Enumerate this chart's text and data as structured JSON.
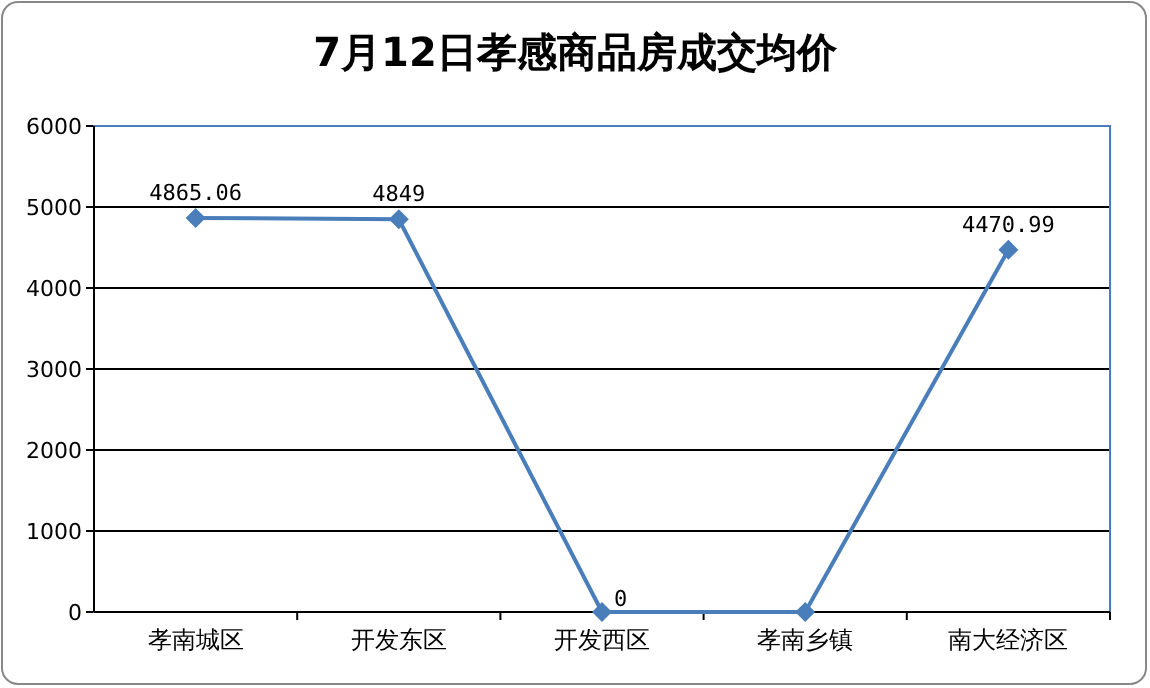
{
  "chart_data": {
    "type": "line",
    "title": "7月12日孝感商品房成交均价",
    "categories": [
      "孝南城区",
      "开发东区",
      "开发西区",
      "孝南乡镇",
      "南大经济区"
    ],
    "series": [
      {
        "color": "#4a7ebb",
        "values": [
          4865.06,
          4849,
          0,
          0,
          4470.99
        ],
        "value_labels": [
          "4865.06",
          "4849",
          "0",
          null,
          "4470.99"
        ]
      }
    ],
    "ylim": [
      0,
      6000
    ],
    "yticks": [
      0,
      1000,
      2000,
      3000,
      4000,
      5000,
      6000
    ],
    "grid": "y",
    "marker": "diamond",
    "line_style": "solid"
  }
}
